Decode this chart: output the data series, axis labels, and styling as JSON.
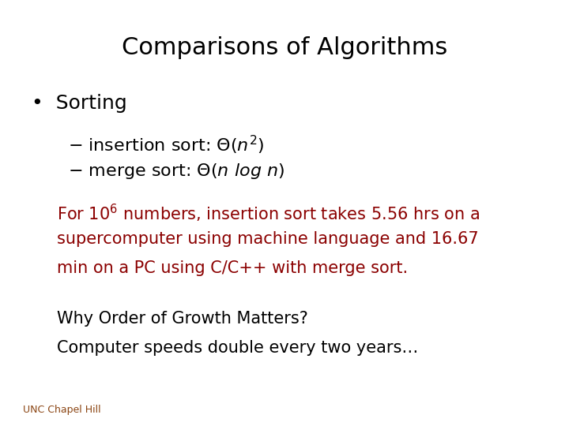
{
  "title": "Comparisons of Algorithms",
  "title_fontsize": 22,
  "title_color": "#000000",
  "background_color": "#ffffff",
  "bullet_text": "Sorting",
  "bullet_fontsize": 18,
  "dash_fontsize": 16,
  "red_line2": "supercomputer using machine language and 16.67",
  "red_line3": "min on a PC using C/C++ with merge sort.",
  "red_fontsize": 15,
  "red_color": "#8B0000",
  "black_line1": "Why Order of Growth Matters?",
  "black_line2": "Computer speeds double every two years…",
  "black_fontsize": 15,
  "black_color": "#000000",
  "footer": "UNC Chapel Hill",
  "footer_fontsize": 9,
  "footer_color": "#8B4513"
}
